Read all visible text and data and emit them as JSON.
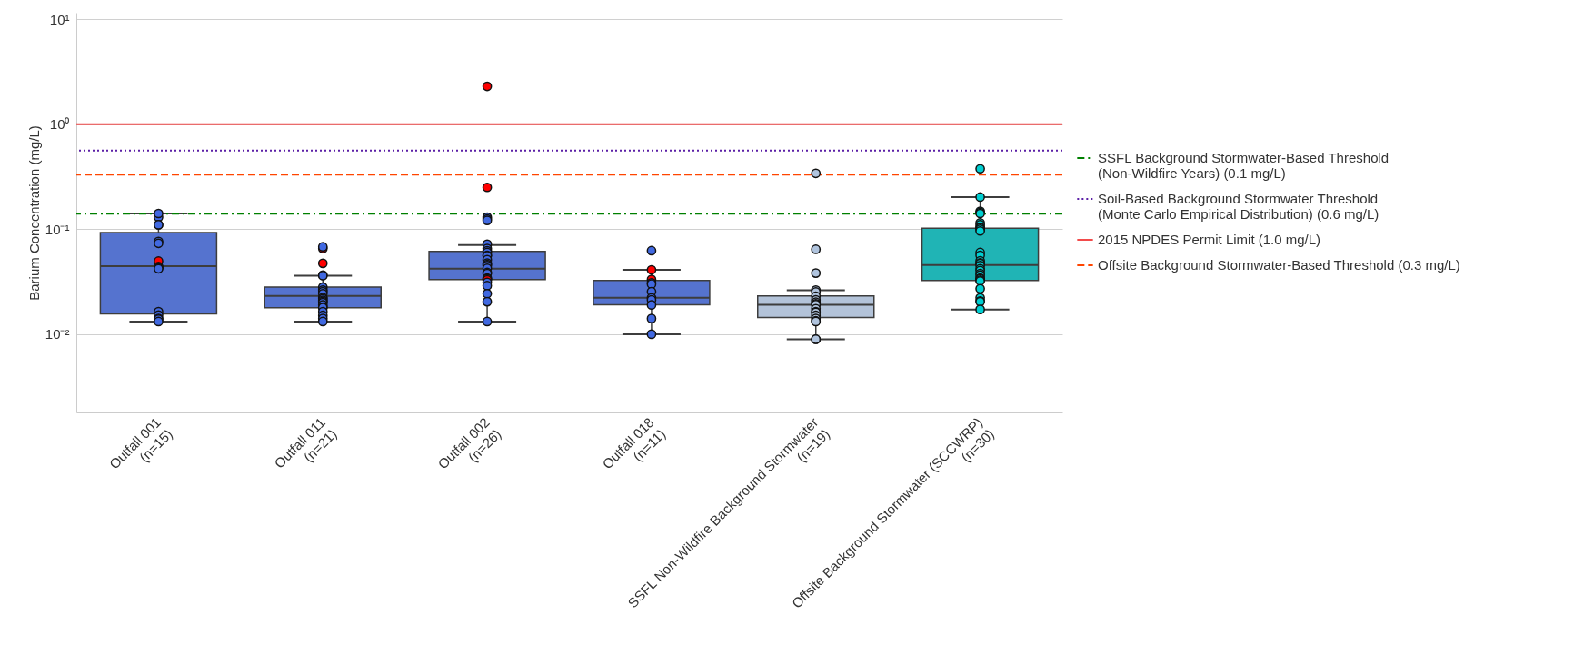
{
  "chart_data": {
    "type": "box",
    "ylabel": "Barium Concentration (mg/L)",
    "categories": [
      "Outfall 001\n(n=15)",
      "Outfall 011\n(n=21)",
      "Outfall 002\n(n=26)",
      "Outfall 018\n(n=11)",
      "SSFL Non-Wildfire Background Stormwater\n(n=19)",
      "Offsite Background Stormwater (SCCWRP)\n(n=30)"
    ],
    "log": "y",
    "ylim": [
      0.0018,
      11.5
    ],
    "yticks": [
      {
        "value": 0.01,
        "label": "10⁻²"
      },
      {
        "value": 0.1,
        "label": "10⁻¹"
      },
      {
        "value": 1,
        "label": "10⁰"
      },
      {
        "value": 10,
        "label": "10¹"
      }
    ],
    "grid": "y",
    "legend": "right",
    "series": [
      {
        "type": "box",
        "colors": [
          "#5573cf",
          "#5573cf",
          "#5573cf",
          "#5573cf",
          "#b3c3d9",
          "#20b4b5"
        ],
        "boxes": [
          {
            "low": 0.0132,
            "q1": 0.0156,
            "median": 0.0444,
            "q3": 0.093,
            "high": 0.141
          },
          {
            "low": 0.0132,
            "q1": 0.0179,
            "median": 0.0231,
            "q3": 0.0281,
            "high": 0.0361
          },
          {
            "low": 0.0132,
            "q1": 0.0332,
            "median": 0.042,
            "q3": 0.0614,
            "high": 0.0707
          },
          {
            "low": 0.01,
            "q1": 0.0191,
            "median": 0.0222,
            "q3": 0.0324,
            "high": 0.041
          },
          {
            "low": 0.00895,
            "q1": 0.0144,
            "median": 0.0191,
            "q3": 0.0231,
            "high": 0.0262
          },
          {
            "low": 0.0172,
            "q1": 0.0324,
            "median": 0.0455,
            "q3": 0.102,
            "high": 0.202
          }
        ]
      },
      {
        "type": "scatter",
        "x": [
          "Outfall 001\n(n=15)",
          "Outfall 001\n(n=15)",
          "Outfall 001\n(n=15)",
          "Outfall 001\n(n=15)",
          "Outfall 001\n(n=15)",
          "Outfall 001\n(n=15)",
          "Outfall 001\n(n=15)",
          "Outfall 001\n(n=15)",
          "Outfall 001\n(n=15)",
          "Outfall 001\n(n=15)",
          "Outfall 001\n(n=15)",
          "Outfall 001\n(n=15)",
          "Outfall 001\n(n=15)",
          "Outfall 001\n(n=15)",
          "Outfall 001\n(n=15)",
          "Outfall 011\n(n=21)",
          "Outfall 011\n(n=21)",
          "Outfall 011\n(n=21)",
          "Outfall 011\n(n=21)",
          "Outfall 011\n(n=21)",
          "Outfall 011\n(n=21)",
          "Outfall 011\n(n=21)",
          "Outfall 011\n(n=21)",
          "Outfall 011\n(n=21)",
          "Outfall 011\n(n=21)",
          "Outfall 011\n(n=21)",
          "Outfall 011\n(n=21)",
          "Outfall 011\n(n=21)",
          "Outfall 011\n(n=21)",
          "Outfall 011\n(n=21)",
          "Outfall 011\n(n=21)",
          "Outfall 011\n(n=21)",
          "Outfall 011\n(n=21)",
          "Outfall 011\n(n=21)",
          "Outfall 011\n(n=21)",
          "Outfall 011\n(n=21)",
          "Outfall 002\n(n=26)",
          "Outfall 002\n(n=26)",
          "Outfall 002\n(n=26)",
          "Outfall 002\n(n=26)",
          "Outfall 002\n(n=26)",
          "Outfall 002\n(n=26)",
          "Outfall 002\n(n=26)",
          "Outfall 002\n(n=26)",
          "Outfall 002\n(n=26)",
          "Outfall 002\n(n=26)",
          "Outfall 002\n(n=26)",
          "Outfall 002\n(n=26)",
          "Outfall 002\n(n=26)",
          "Outfall 002\n(n=26)",
          "Outfall 002\n(n=26)",
          "Outfall 002\n(n=26)",
          "Outfall 002\n(n=26)",
          "Outfall 002\n(n=26)",
          "Outfall 002\n(n=26)",
          "Outfall 002\n(n=26)",
          "Outfall 002\n(n=26)",
          "Outfall 002\n(n=26)",
          "Outfall 002\n(n=26)",
          "Outfall 002\n(n=26)",
          "Outfall 002\n(n=26)",
          "Outfall 002\n(n=26)",
          "Outfall 018\n(n=11)",
          "Outfall 018\n(n=11)",
          "Outfall 018\n(n=11)",
          "Outfall 018\n(n=11)",
          "Outfall 018\n(n=11)",
          "Outfall 018\n(n=11)",
          "Outfall 018\n(n=11)",
          "Outfall 018\n(n=11)",
          "Outfall 018\n(n=11)",
          "Outfall 018\n(n=11)",
          "Outfall 018\n(n=11)",
          "SSFL Non-Wildfire Background Stormwater\n(n=19)",
          "SSFL Non-Wildfire Background Stormwater\n(n=19)",
          "SSFL Non-Wildfire Background Stormwater\n(n=19)",
          "SSFL Non-Wildfire Background Stormwater\n(n=19)",
          "SSFL Non-Wildfire Background Stormwater\n(n=19)",
          "SSFL Non-Wildfire Background Stormwater\n(n=19)",
          "SSFL Non-Wildfire Background Stormwater\n(n=19)",
          "SSFL Non-Wildfire Background Stormwater\n(n=19)",
          "SSFL Non-Wildfire Background Stormwater\n(n=19)",
          "SSFL Non-Wildfire Background Stormwater\n(n=19)",
          "SSFL Non-Wildfire Background Stormwater\n(n=19)",
          "SSFL Non-Wildfire Background Stormwater\n(n=19)",
          "SSFL Non-Wildfire Background Stormwater\n(n=19)",
          "SSFL Non-Wildfire Background Stormwater\n(n=19)",
          "SSFL Non-Wildfire Background Stormwater\n(n=19)",
          "SSFL Non-Wildfire Background Stormwater\n(n=19)",
          "SSFL Non-Wildfire Background Stormwater\n(n=19)",
          "SSFL Non-Wildfire Background Stormwater\n(n=19)",
          "SSFL Non-Wildfire Background Stormwater\n(n=19)",
          "Offsite Background Stormwater (SCCWRP)\n(n=30)",
          "Offsite Background Stormwater (SCCWRP)\n(n=30)",
          "Offsite Background Stormwater (SCCWRP)\n(n=30)",
          "Offsite Background Stormwater (SCCWRP)\n(n=30)",
          "Offsite Background Stormwater (SCCWRP)\n(n=30)",
          "Offsite Background Stormwater (SCCWRP)\n(n=30)",
          "Offsite Background Stormwater (SCCWRP)\n(n=30)",
          "Offsite Background Stormwater (SCCWRP)\n(n=30)",
          "Offsite Background Stormwater (SCCWRP)\n(n=30)",
          "Offsite Background Stormwater (SCCWRP)\n(n=30)",
          "Offsite Background Stormwater (SCCWRP)\n(n=30)",
          "Offsite Background Stormwater (SCCWRP)\n(n=30)",
          "Offsite Background Stormwater (SCCWRP)\n(n=30)",
          "Offsite Background Stormwater (SCCWRP)\n(n=30)",
          "Offsite Background Stormwater (SCCWRP)\n(n=30)",
          "Offsite Background Stormwater (SCCWRP)\n(n=30)",
          "Offsite Background Stormwater (SCCWRP)\n(n=30)",
          "Offsite Background Stormwater (SCCWRP)\n(n=30)",
          "Offsite Background Stormwater (SCCWRP)\n(n=30)",
          "Offsite Background Stormwater (SCCWRP)\n(n=30)",
          "Offsite Background Stormwater (SCCWRP)\n(n=30)",
          "Offsite Background Stormwater (SCCWRP)\n(n=30)",
          "Offsite Background Stormwater (SCCWRP)\n(n=30)",
          "Offsite Background Stormwater (SCCWRP)\n(n=30)",
          "Offsite Background Stormwater (SCCWRP)\n(n=30)",
          "Offsite Background Stormwater (SCCWRP)\n(n=30)",
          "Offsite Background Stormwater (SCCWRP)\n(n=30)",
          "Offsite Background Stormwater (SCCWRP)\n(n=30)",
          "Offsite Background Stormwater (SCCWRP)\n(n=30)",
          "Offsite Background Stormwater (SCCWRP)\n(n=30)"
        ],
        "values": [
          0.13,
          0.141,
          0.11,
          0.11,
          0.0764,
          0.0734,
          0.0496,
          0.0441,
          0.0428,
          0.042,
          0.0164,
          0.0152,
          0.0141,
          0.0139,
          0.0132,
          0.0654,
          0.0679,
          0.0473,
          0.0365,
          0.0361,
          0.0281,
          0.0263,
          0.0254,
          0.0243,
          0.0223,
          0.0218,
          0.021,
          0.0205,
          0.02,
          0.019,
          0.0181,
          0.0179,
          0.0164,
          0.0151,
          0.0141,
          0.0132,
          2.29,
          0.25,
          0.13,
          0.125,
          0.121,
          0.0718,
          0.0654,
          0.0622,
          0.06,
          0.0563,
          0.0558,
          0.0512,
          0.0475,
          0.0462,
          0.0451,
          0.0424,
          0.0387,
          0.0379,
          0.0342,
          0.0337,
          0.0329,
          0.0312,
          0.029,
          0.0243,
          0.0204,
          0.0132,
          0.0624,
          0.041,
          0.0332,
          0.0309,
          0.03,
          0.0254,
          0.0222,
          0.0212,
          0.019,
          0.0141,
          0.01,
          0.34,
          0.0643,
          0.0382,
          0.0263,
          0.0252,
          0.023,
          0.0212,
          0.0202,
          0.0195,
          0.0191,
          0.0175,
          0.0164,
          0.0161,
          0.0151,
          0.0141,
          0.0134,
          0.0132,
          0.00895,
          0.00895,
          0.376,
          0.202,
          0.148,
          0.144,
          0.141,
          0.115,
          0.11,
          0.104,
          0.103,
          0.0999,
          0.0961,
          0.06,
          0.0563,
          0.05,
          0.0477,
          0.047,
          0.0451,
          0.042,
          0.0404,
          0.0379,
          0.0365,
          0.0342,
          0.0337,
          0.0327,
          0.0321,
          0.0271,
          0.0222,
          0.0207,
          0.0204,
          0.0172
        ],
        "colors": [
          "#4169e1",
          "#4169e1",
          "#4169e1",
          "#4169e1",
          "#4169e1",
          "#4169e1",
          "#ff0000",
          "#ff0000",
          "#4169e1",
          "#4169e1",
          "#4169e1",
          "#4169e1",
          "#ff0000",
          "#4169e1",
          "#4169e1",
          "#ff0000",
          "#4169e1",
          "#ff0000",
          "#4169e1",
          "#4169e1",
          "#4169e1",
          "#4169e1",
          "#4169e1",
          "#4169e1",
          "#4169e1",
          "#4169e1",
          "#4169e1",
          "#4169e1",
          "#4169e1",
          "#4169e1",
          "#4169e1",
          "#4169e1",
          "#4169e1",
          "#4169e1",
          "#4169e1",
          "#4169e1",
          "#ff0000",
          "#ff0000",
          "#4169e1",
          "#4169e1",
          "#4169e1",
          "#4169e1",
          "#4169e1",
          "#4169e1",
          "#4169e1",
          "#4169e1",
          "#4169e1",
          "#4169e1",
          "#4169e1",
          "#4169e1",
          "#4169e1",
          "#4169e1",
          "#4169e1",
          "#4169e1",
          "#ff0000",
          "#4169e1",
          "#ff0000",
          "#4169e1",
          "#4169e1",
          "#4169e1",
          "#4169e1",
          "#4169e1",
          "#4169e1",
          "#ff0000",
          "#ff0000",
          "#4169e1",
          "#4169e1",
          "#4169e1",
          "#4169e1",
          "#4169e1",
          "#4169e1",
          "#4169e1",
          "#4169e1",
          "#b0c4de",
          "#b0c4de",
          "#b0c4de",
          "#b0c4de",
          "#b0c4de",
          "#b0c4de",
          "#b0c4de",
          "#b0c4de",
          "#b0c4de",
          "#b0c4de",
          "#b0c4de",
          "#b0c4de",
          "#b0c4de",
          "#b0c4de",
          "#b0c4de",
          "#b0c4de",
          "#b0c4de",
          "#b0c4de",
          "#b0c4de",
          "#00ced1",
          "#00ced1",
          "#00ced1",
          "#00ced1",
          "#00ced1",
          "#00ced1",
          "#00ced1",
          "#00ced1",
          "#00ced1",
          "#00ced1",
          "#00ced1",
          "#00ced1",
          "#00ced1",
          "#00ced1",
          "#00ced1",
          "#00ced1",
          "#00ced1",
          "#00ced1",
          "#00ced1",
          "#00ced1",
          "#00ced1",
          "#00ced1",
          "#00ced1",
          "#00ced1",
          "#00ced1",
          "#00ced1",
          "#00ced1",
          "#00ced1",
          "#00ced1",
          "#00ced1"
        ]
      }
    ],
    "ref_lines": [
      {
        "axis": "y",
        "value": 0.14,
        "label": "SSFL Background Stormwater-Based Threshold\n (Non-Wildfire Years) (0.1 mg/L)",
        "color": "#008000",
        "line_style": "dashdot"
      },
      {
        "axis": "y",
        "value": 0.56,
        "label": "Soil-Based Background Stormwater Threshold\n (Monte Carlo Empirical Distribution) (0.6 mg/L)",
        "color": "#5b1fa6",
        "line_style": "dotted"
      },
      {
        "axis": "y",
        "value": 1.0,
        "label": "2015 NPDES Permit Limit (1.0 mg/L)",
        "color": "#f24b4b",
        "line_style": "solid"
      },
      {
        "axis": "y",
        "value": 0.33,
        "label": "Offsite Background Stormwater-Based Threshold (0.3 mg/L)",
        "color": "#ff4500",
        "line_style": "dashed"
      }
    ]
  }
}
